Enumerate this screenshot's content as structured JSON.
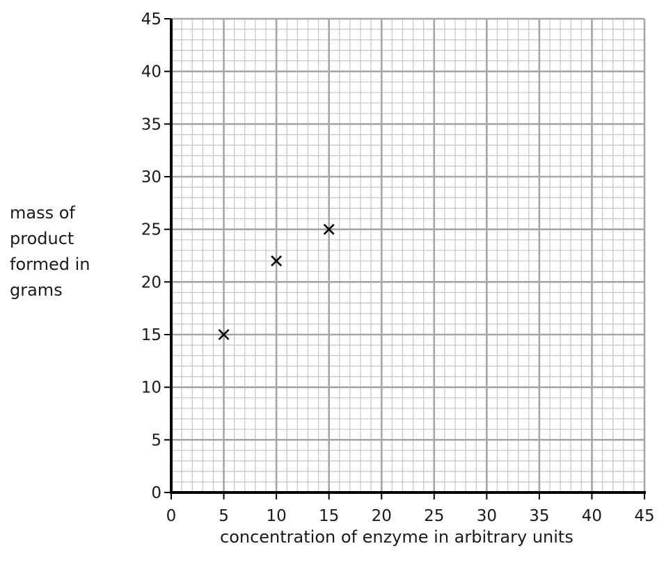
{
  "chart_data": {
    "type": "scatter",
    "title": "",
    "xlabel": "concentration of enzyme in arbitrary units",
    "ylabel_lines": [
      "mass of",
      "product",
      "formed in",
      "grams"
    ],
    "xlim": [
      0,
      45
    ],
    "ylim": [
      0,
      45
    ],
    "x_ticks": [
      "0",
      "5",
      "10",
      "15",
      "20",
      "25",
      "30",
      "35",
      "40",
      "45"
    ],
    "y_ticks": [
      "0",
      "5",
      "10",
      "15",
      "20",
      "25",
      "30",
      "35",
      "40",
      "45"
    ],
    "grid": true,
    "marker": "x",
    "points": [
      {
        "x": 5,
        "y": 15
      },
      {
        "x": 10,
        "y": 22
      },
      {
        "x": 15,
        "y": 25
      }
    ],
    "colors": {
      "axis": "#000000",
      "major_grid": "#a6a6a6",
      "minor_grid": "#c4c4c4",
      "marker": "#000000",
      "text": "#1a1a1a"
    }
  }
}
